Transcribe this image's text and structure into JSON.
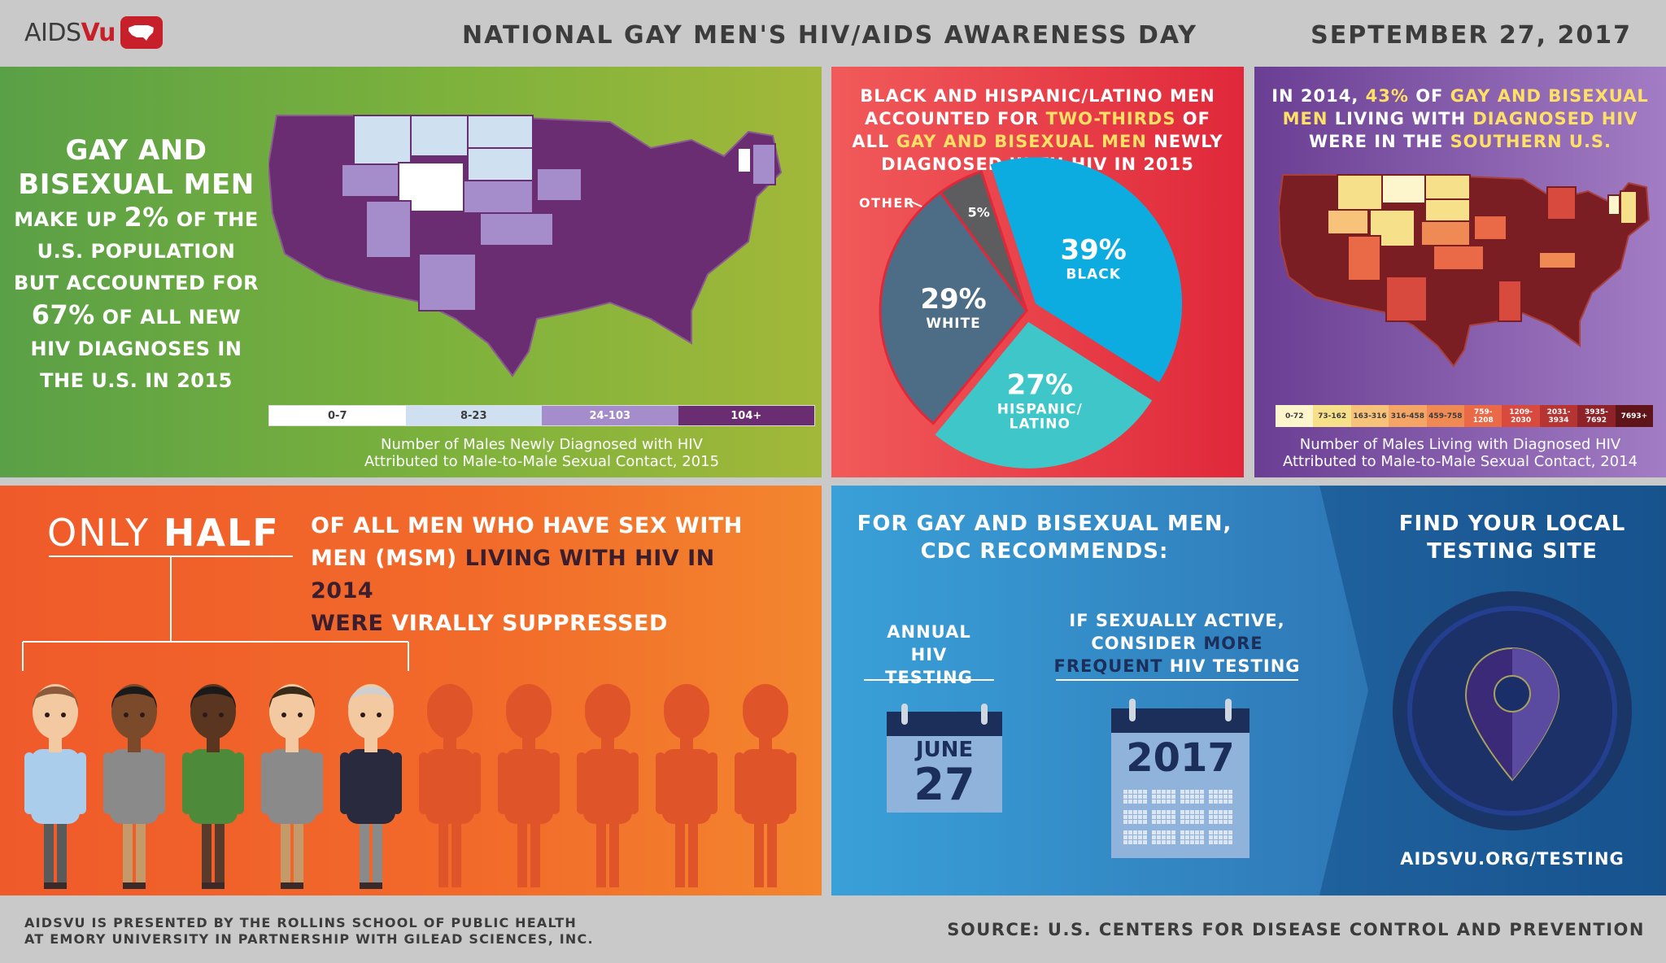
{
  "header": {
    "logo_prefix": "AIDS",
    "logo_suffix": "Vu",
    "title": "NATIONAL GAY MEN'S HIV/AIDS AWARENESS DAY",
    "date": "SEPTEMBER 27, 2017"
  },
  "panel_diagnoses": {
    "head1": "GAY AND",
    "head2": "BISEXUAL MEN",
    "l1a": "MAKE UP ",
    "l1b": "2%",
    "l1c": " OF THE",
    "l2": "U.S. POPULATION",
    "l3": "BUT ACCOUNTED FOR",
    "l4a": "67%",
    "l4b": " OF ALL NEW",
    "l5": "HIV DIAGNOSES IN",
    "l6": "THE U.S. IN 2015",
    "legend": [
      "0-7",
      "8-23",
      "24-103",
      "104+"
    ],
    "legend_colors": [
      "#ffffff",
      "#cfe0f0",
      "#a58ccb",
      "#6a2d72"
    ],
    "caption1": "Number of Males Newly Diagnosed with HIV",
    "caption2": "Attributed to Male-to-Male Sexual Contact, 2015"
  },
  "panel_race": {
    "t1": "BLACK AND HISPANIC/LATINO MEN",
    "t2a": "ACCOUNTED FOR ",
    "t2b": "TWO-THIRDS",
    "t2c": " OF",
    "t3a": "ALL ",
    "t3b": "GAY AND BISEXUAL MEN",
    "t3c": " NEWLY",
    "t4": "DIAGNOSED WITH HIV IN 2015",
    "other_label": "OTHER"
  },
  "chart_data": {
    "type": "pie",
    "slices": [
      {
        "label": "BLACK",
        "value": 39,
        "display": "39%",
        "color": "#0cace0"
      },
      {
        "label": "HISPANIC/ LATINO",
        "value": 27,
        "display": "27%",
        "color": "#3ec6c9"
      },
      {
        "label": "WHITE",
        "value": 29,
        "display": "29%",
        "color": "#4d6d86"
      },
      {
        "label": "OTHER",
        "value": 5,
        "display": "5%",
        "color": "#5d5d5f"
      }
    ]
  },
  "panel_south": {
    "t1a": "IN 2014, ",
    "t1b": "43%",
    "t1c": " OF ",
    "t1d": "GAY AND BISEXUAL",
    "t2a": "MEN",
    "t2b": " LIVING WITH ",
    "t2c": "DIAGNOSED HIV",
    "t3a": "WERE IN THE ",
    "t3b": "SOUTHERN U.S.",
    "legend": [
      "0-72",
      "73-162",
      "163-316",
      "316-458",
      "459-758",
      "759-1208",
      "1209-2030",
      "2031-3934",
      "3935-7692",
      "7693+"
    ],
    "legend_colors": [
      "#fdf6cc",
      "#f6e08a",
      "#f7c27a",
      "#f5a566",
      "#f08a55",
      "#ea6a48",
      "#d84a3e",
      "#b63533",
      "#8d2229",
      "#5e1419"
    ],
    "caption1": "Number of Males Living with Diagnosed HIV",
    "caption2": "Attributed to Male-to-Male Sexual Contact, 2014"
  },
  "panel_half": {
    "only": "ONLY ",
    "half": "HALF",
    "l1a": "OF ALL ",
    "l1b": "MEN WHO HAVE SEX WITH",
    "l2a": "MEN (MSM)",
    "l2b": " LIVING WITH HIV IN 2014",
    "l3a": "WERE ",
    "l3b": "VIRALLY SUPPRESSED",
    "suppressed_count": 5,
    "total_count": 10
  },
  "panel_cdc": {
    "t1": "FOR GAY AND BISEXUAL MEN,",
    "t2": "CDC RECOMMENDS:",
    "rec1a": "ANNUAL",
    "rec1b": "HIV TESTING",
    "rec2a": "IF SEXUALLY ACTIVE,",
    "rec2b1": "CONSIDER ",
    "rec2b2": "MORE",
    "rec2c1": "FREQUENT",
    "rec2c2": " HIV TESTING",
    "cal1_month": "JUNE",
    "cal1_day": "27",
    "cal2_year": "2017",
    "find1": "FIND YOUR LOCAL",
    "find2": "TESTING SITE",
    "url": "AIDSVU.ORG/TESTING"
  },
  "footer": {
    "left1": "AIDSVU IS PRESENTED BY THE ROLLINS SCHOOL OF PUBLIC HEALTH",
    "left2": "AT EMORY UNIVERSITY IN PARTNERSHIP WITH GILEAD SCIENCES, INC.",
    "right": "SOURCE: U.S. CENTERS FOR DISEASE CONTROL AND PREVENTION"
  }
}
